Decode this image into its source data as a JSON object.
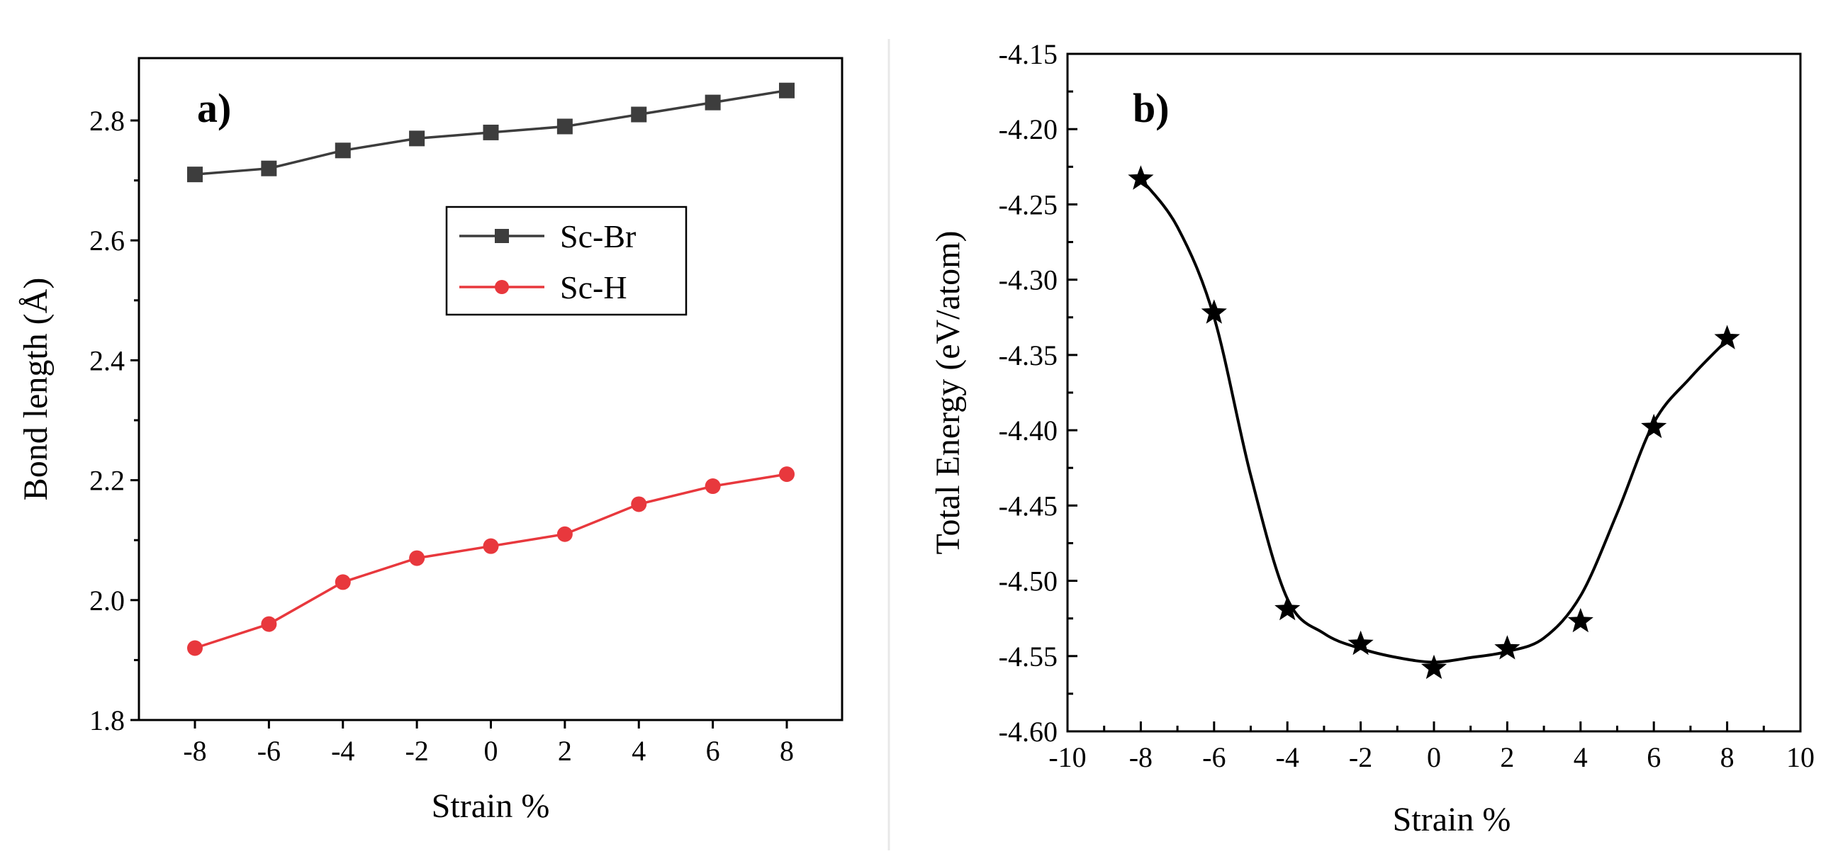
{
  "chart_data": [
    {
      "panel": "a)",
      "type": "line",
      "title": "",
      "xlabel": "Strain %",
      "ylabel": "Bond length (Å)",
      "categories": [
        "-8",
        "-6",
        "-4",
        "-2",
        "0",
        "2",
        "4",
        "6",
        "8"
      ],
      "x": [
        -8,
        -6,
        -4,
        -2,
        0,
        2,
        4,
        6,
        8
      ],
      "yticks": [
        "1.8",
        "2.0",
        "2.2",
        "2.4",
        "2.6",
        "2.8"
      ],
      "ylim": [
        1.8,
        2.9
      ],
      "grid": false,
      "legend_position": "center-right",
      "series": [
        {
          "name": "Sc-Br",
          "marker": "square",
          "color": "#3d3d3d",
          "values": [
            2.71,
            2.72,
            2.75,
            2.77,
            2.78,
            2.79,
            2.81,
            2.83,
            2.85
          ]
        },
        {
          "name": "Sc-H",
          "marker": "circle",
          "color": "#e8383d",
          "values": [
            1.92,
            1.96,
            2.03,
            2.07,
            2.09,
            2.11,
            2.16,
            2.19,
            2.21
          ]
        }
      ]
    },
    {
      "panel": "b)",
      "type": "scatter",
      "title": "",
      "xlabel": "Strain %",
      "ylabel": "Total Energy (eV/atom)",
      "xticks": [
        "-10",
        "-8",
        "-6",
        "-4",
        "-2",
        "0",
        "2",
        "4",
        "6",
        "8",
        "10"
      ],
      "xlim": [
        -10,
        10
      ],
      "yticks": [
        "-4.60",
        "-4.55",
        "-4.50",
        "-4.45",
        "-4.40",
        "-4.35",
        "-4.30",
        "-4.25",
        "-4.20",
        "-4.15"
      ],
      "ylim": [
        -4.6,
        -4.15
      ],
      "grid": false,
      "series": [
        {
          "name": "Total Energy",
          "marker": "star",
          "color": "#000000",
          "x": [
            -8,
            -6,
            -4,
            -2,
            0,
            2,
            4,
            6,
            8
          ],
          "values": [
            -4.233,
            -4.322,
            -4.519,
            -4.542,
            -4.558,
            -4.545,
            -4.527,
            -4.398,
            -4.339
          ]
        }
      ],
      "fit_curve": {
        "x": [
          -8,
          -7,
          -6,
          -5,
          -4,
          -3,
          -2,
          -1,
          0,
          1,
          2,
          3,
          4,
          5,
          6,
          7,
          8
        ],
        "y": [
          -4.233,
          -4.265,
          -4.325,
          -4.43,
          -4.512,
          -4.535,
          -4.545,
          -4.551,
          -4.554,
          -4.551,
          -4.547,
          -4.538,
          -4.51,
          -4.455,
          -4.395,
          -4.365,
          -4.34
        ]
      }
    }
  ]
}
